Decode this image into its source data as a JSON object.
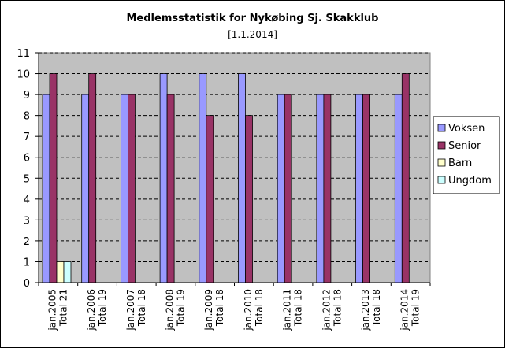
{
  "chart_data": {
    "type": "bar",
    "title": "Medlemsstatistik for Nykøbing Sj. Skakklub",
    "subtitle": "[1.1.2014]",
    "categories": [
      [
        "jan.2005",
        "Total 21"
      ],
      [
        "jan.2006",
        "Total 19"
      ],
      [
        "jan.2007",
        "Total 18"
      ],
      [
        "jan.2008",
        "Total 19"
      ],
      [
        "jan.2009",
        "Total 18"
      ],
      [
        "jan.2010",
        "Total 18"
      ],
      [
        "jan.2011",
        "Total 18"
      ],
      [
        "jan.2012",
        "Total 18"
      ],
      [
        "jan.2013",
        "Total 18"
      ],
      [
        "jan.2014",
        "Total 19"
      ]
    ],
    "series": [
      {
        "name": "Voksen",
        "color": "#9999ff",
        "values": [
          9,
          9,
          9,
          10,
          10,
          10,
          9,
          9,
          9,
          9
        ]
      },
      {
        "name": "Senior",
        "color": "#993366",
        "values": [
          10,
          10,
          9,
          9,
          8,
          8,
          9,
          9,
          9,
          10
        ]
      },
      {
        "name": "Barn",
        "color": "#ffffcc",
        "values": [
          1,
          0,
          0,
          0,
          0,
          0,
          0,
          0,
          0,
          0
        ]
      },
      {
        "name": "Ungdom",
        "color": "#ccffff",
        "values": [
          1,
          0,
          0,
          0,
          0,
          0,
          0,
          0,
          0,
          0
        ]
      }
    ],
    "ylim": [
      0,
      11
    ],
    "yticks": [
      0,
      1,
      2,
      3,
      4,
      5,
      6,
      7,
      8,
      9,
      10,
      11
    ],
    "grid": true,
    "legend": "right",
    "plot_background": "#c0c0c0"
  }
}
